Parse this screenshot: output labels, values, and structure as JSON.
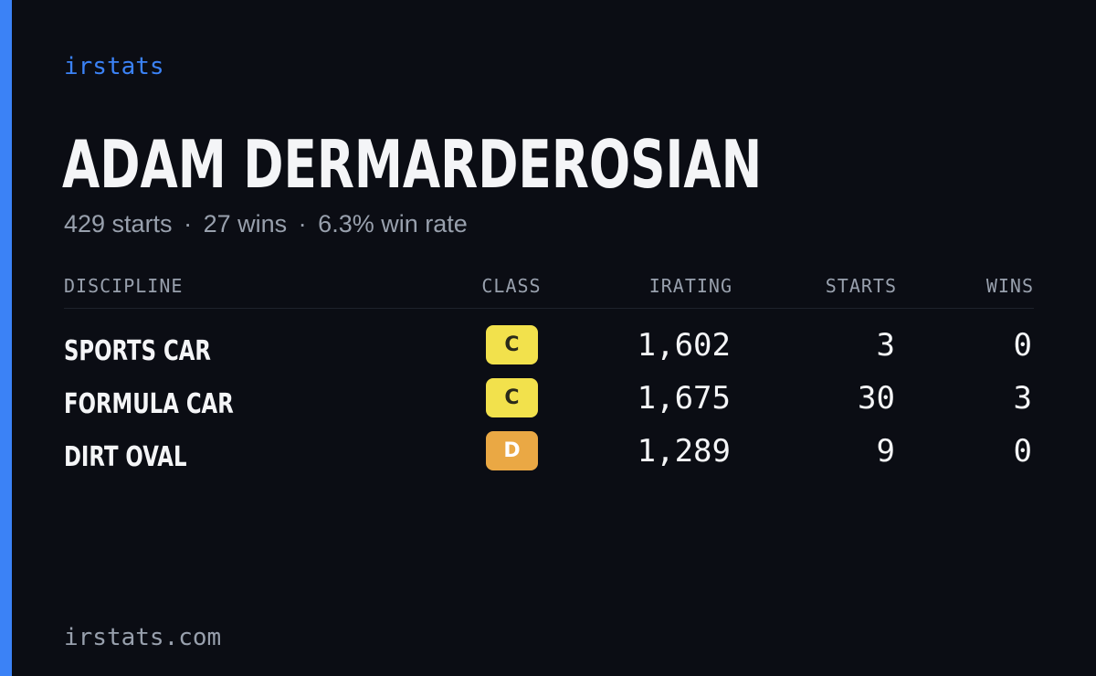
{
  "colors": {
    "accent": "#3b82f6",
    "background": "#0b0d14",
    "text": "#f4f5f7",
    "muted": "#98a0ad",
    "class_c": "#f2e14c",
    "class_d": "#eaa844"
  },
  "brand": "irstats",
  "driver": {
    "name": "ADAM DERMARDEROSIAN",
    "starts_text": "429 starts",
    "separator": "·",
    "wins_text": "27 wins",
    "win_rate_text": "6.3% win rate"
  },
  "table": {
    "headers": {
      "discipline": "DISCIPLINE",
      "class": "CLASS",
      "irating": "IRATING",
      "starts": "STARTS",
      "wins": "WINS"
    },
    "rows": [
      {
        "discipline": "SPORTS CAR",
        "class": "C",
        "class_color": "#f2e14c",
        "class_text_color": "#2a2a1a",
        "irating": "1,602",
        "starts": "3",
        "wins": "0"
      },
      {
        "discipline": "FORMULA CAR",
        "class": "C",
        "class_color": "#f2e14c",
        "class_text_color": "#2a2a1a",
        "irating": "1,675",
        "starts": "30",
        "wins": "3"
      },
      {
        "discipline": "DIRT OVAL",
        "class": "D",
        "class_color": "#eaa844",
        "class_text_color": "#ffffff",
        "irating": "1,289",
        "starts": "9",
        "wins": "0"
      }
    ]
  },
  "footer": "irstats.com"
}
